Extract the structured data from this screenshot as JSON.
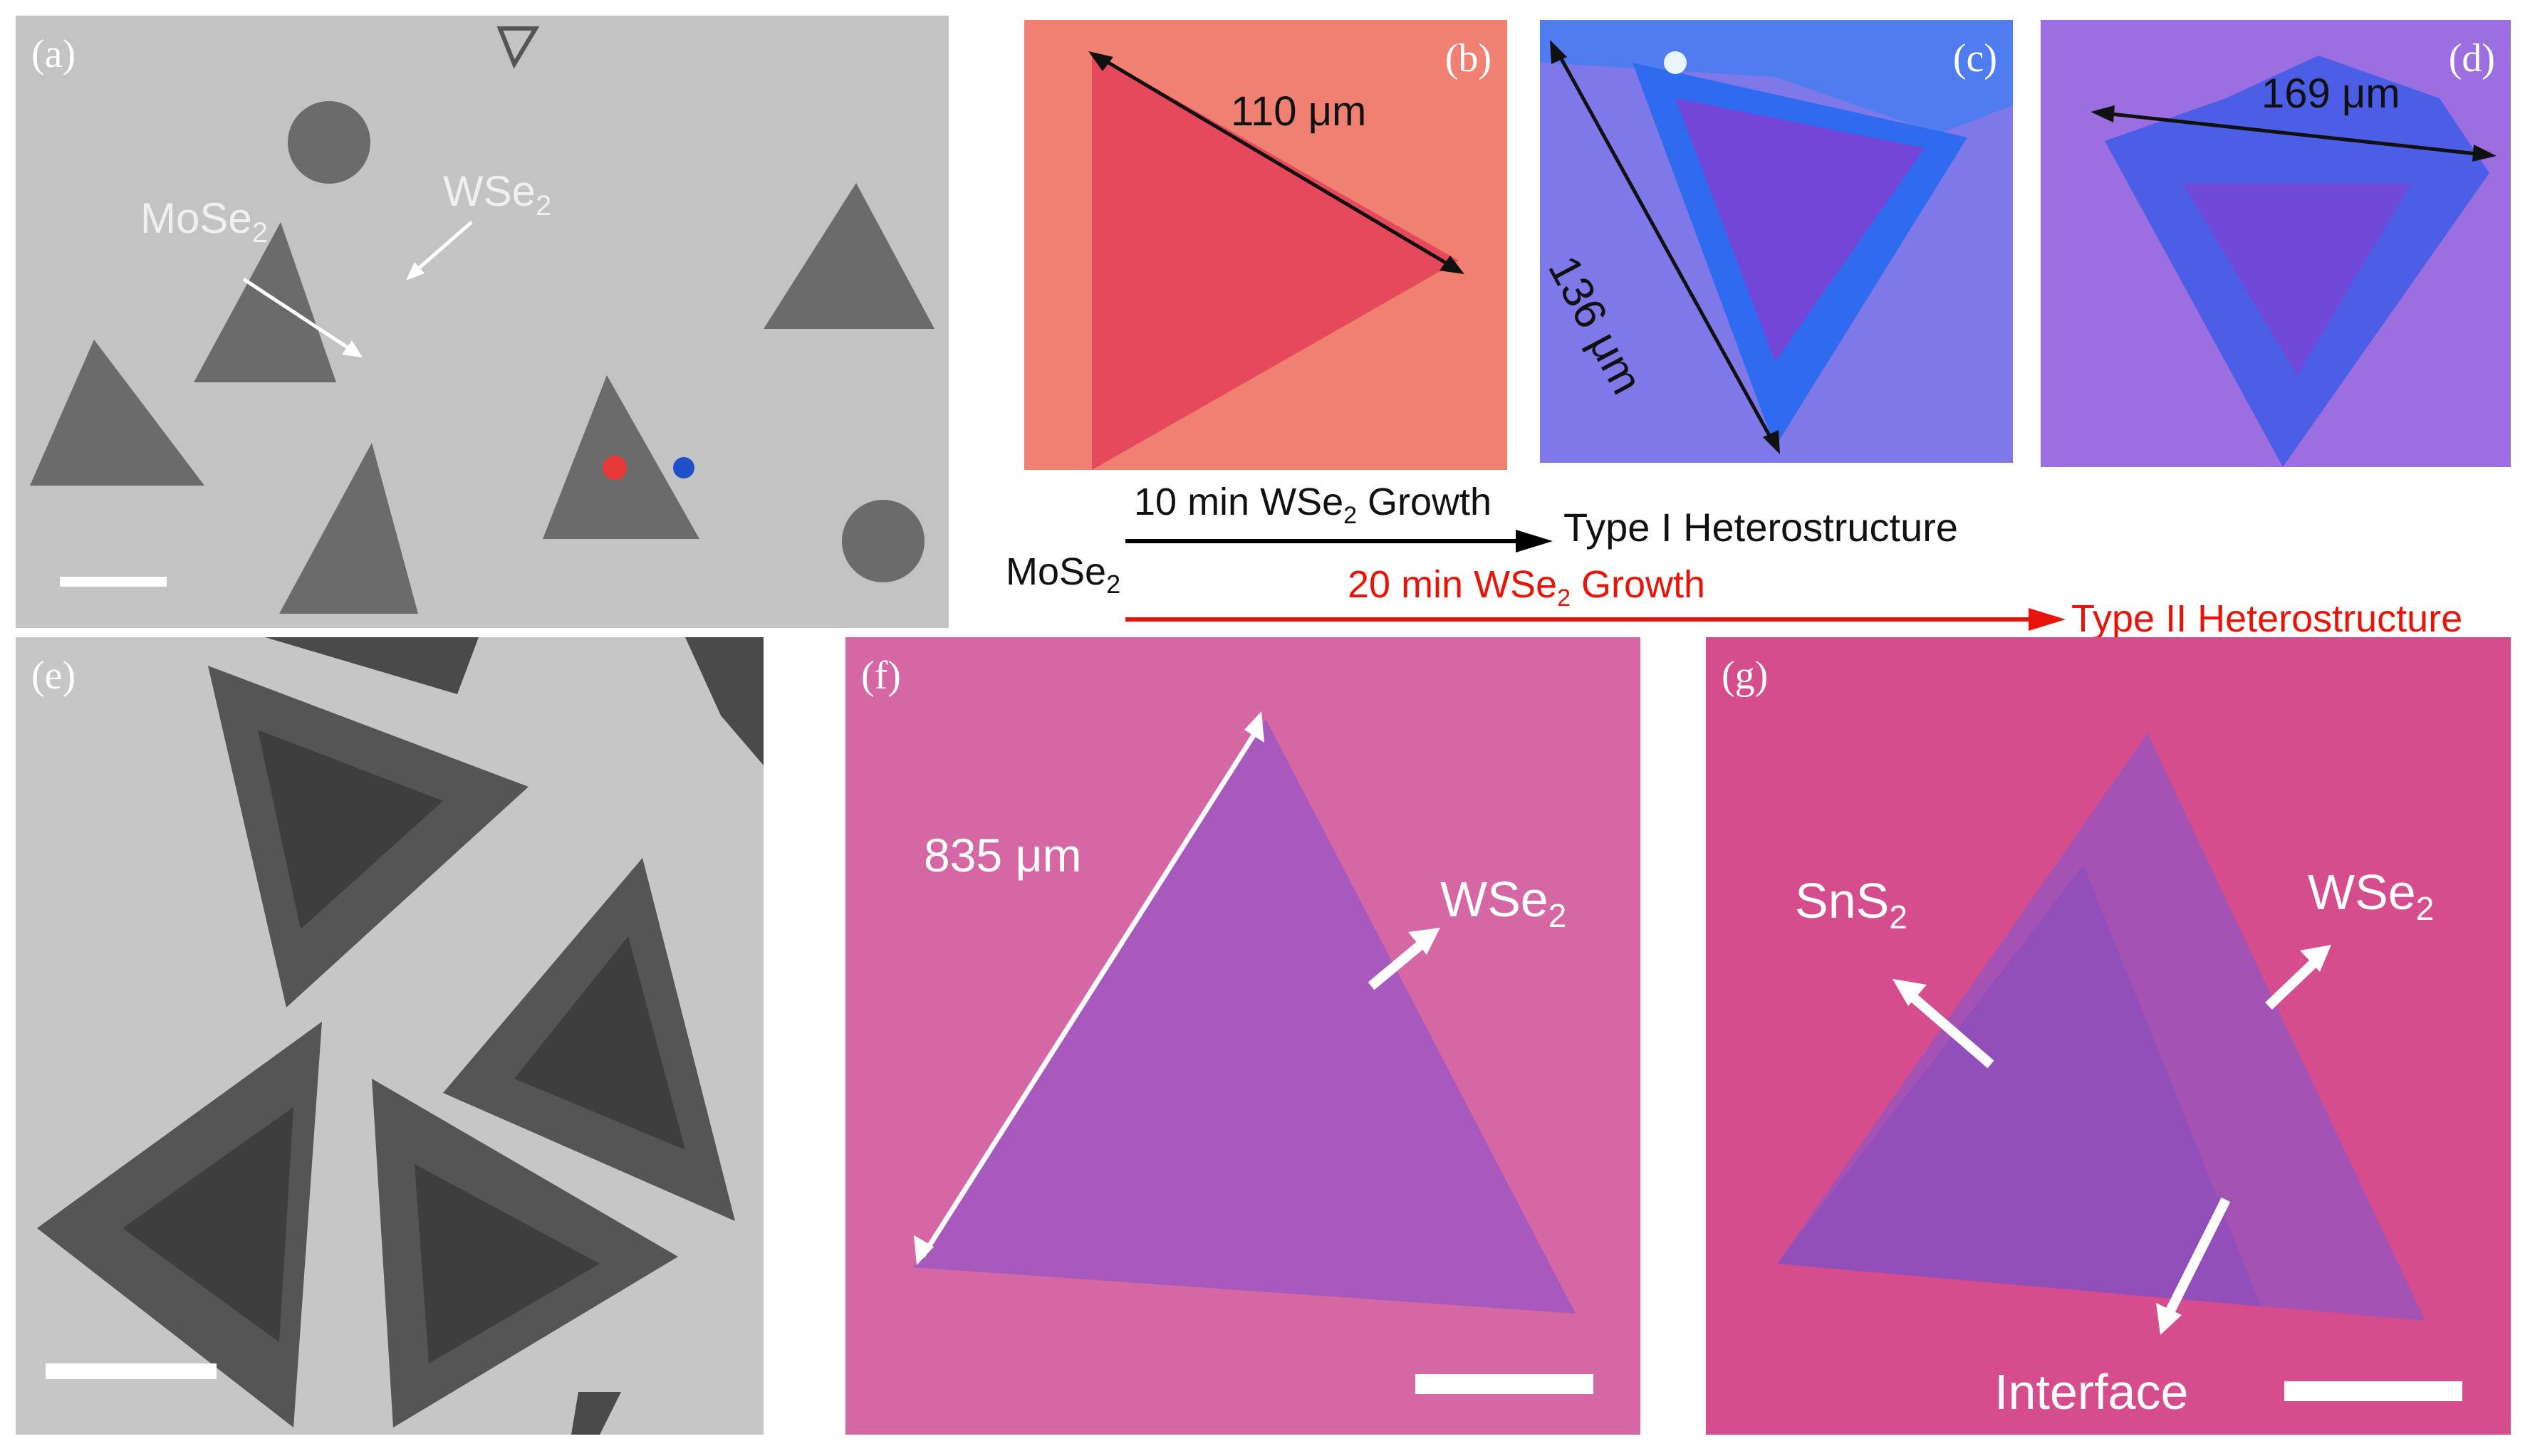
{
  "panels": {
    "a": {
      "tag": "(a)",
      "mose2": "MoSe",
      "mose2_sub": "2",
      "wse2": "WSe",
      "wse2_sub": "2"
    },
    "b": {
      "tag": "(b)",
      "dimension": "110 μm"
    },
    "c": {
      "tag": "(c)",
      "dimension": "136 μm"
    },
    "d": {
      "tag": "(d)",
      "dimension": "169 μm"
    },
    "e": {
      "tag": "(e)"
    },
    "f": {
      "tag": "(f)",
      "dimension": "835 μm",
      "wse2": "WSe",
      "wse2_sub": "2"
    },
    "g": {
      "tag": "(g)",
      "sns2": "SnS",
      "sns2_sub": "2",
      "wse2": "WSe",
      "wse2_sub": "2",
      "interface": "Interface"
    }
  },
  "schematic": {
    "start": "MoSe",
    "start_sub": "2",
    "growth1_pre": "10 min WSe",
    "growth1_sub": "2",
    "growth1_post": " Growth",
    "result1": "Type I Heterostructure",
    "growth2_pre": "20 min WSe",
    "growth2_sub": "2",
    "growth2_post": " Growth",
    "result2": "Type II Heterostructure",
    "color1": "#000000",
    "color2": "#e8140a"
  },
  "colors": {
    "sem_bg": "#c4c4c4",
    "sem_flake": "#6a6a6a",
    "b_bg": "#ef8072",
    "b_flake": "#e6495c",
    "c_bg": "#7f78e8",
    "c_edge": "#2f6bee",
    "c_core": "#7446d8",
    "d_bg": "#9c6fe0",
    "d_flake": "#4d5ee6",
    "d_core": "#7a43d6",
    "f_bg": "#d568a4",
    "f_flake": "#a759bd",
    "g_bg": "#d54d8c",
    "g_flake": "#a452b3",
    "g_core": "#8a4fbd"
  }
}
